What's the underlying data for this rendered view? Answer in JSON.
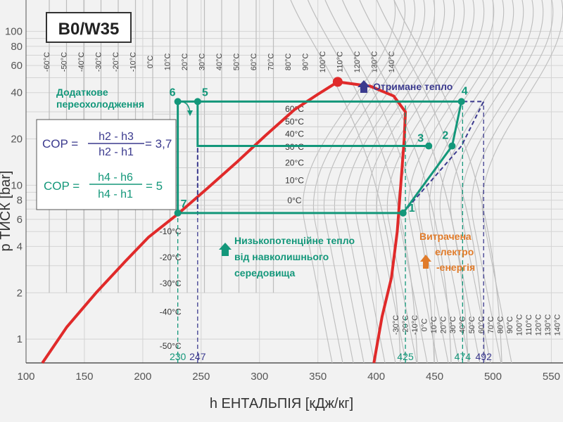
{
  "chart_data": {
    "type": "line",
    "title": "B0/W35",
    "xlabel": "h ЕНТАЛЬПІЯ [кДж/кг]",
    "ylabel": "p ТИСК [bar]",
    "xlim": [
      100,
      560
    ],
    "ylim": [
      0.7,
      160
    ],
    "y_scale": "log",
    "x_ticks": [
      100,
      150,
      200,
      250,
      300,
      350,
      400,
      450,
      500,
      550
    ],
    "y_ticks": [
      1,
      2,
      4,
      6,
      8,
      10,
      20,
      40,
      60,
      80,
      100
    ],
    "grid": true,
    "saturation_dome": {
      "name": "saturation",
      "color": "#e02a2a",
      "critical_point": [
        367,
        47
      ],
      "liquid_line": [
        [
          114,
          0.7
        ],
        [
          135,
          1.2
        ],
        [
          160,
          2.0
        ],
        [
          185,
          3.2
        ],
        [
          205,
          4.6
        ],
        [
          230,
          6.5
        ],
        [
          255,
          9.5
        ],
        [
          280,
          14
        ],
        [
          305,
          21
        ],
        [
          330,
          31
        ],
        [
          350,
          39
        ],
        [
          367,
          47
        ]
      ],
      "vapor_line": [
        [
          367,
          47
        ],
        [
          395,
          44
        ],
        [
          415,
          38
        ],
        [
          425,
          30
        ],
        [
          424,
          20
        ],
        [
          421,
          10
        ],
        [
          418,
          5
        ],
        [
          413,
          2.5
        ],
        [
          405,
          1.4
        ],
        [
          398,
          0.7
        ]
      ]
    },
    "cycle": {
      "color": "#13977a",
      "points": [
        {
          "label": "1",
          "h": 423,
          "p": 6.6
        },
        {
          "label": "2",
          "h": 465,
          "p": 18
        },
        {
          "label": "3",
          "h": 445,
          "p": 18
        },
        {
          "label": "4",
          "h": 473,
          "p": 35
        },
        {
          "label": "5",
          "h": 247,
          "p": 35
        },
        {
          "label": "6",
          "h": 230,
          "p": 35
        },
        {
          "label": "7",
          "h": 230,
          "p": 6.6
        }
      ],
      "path": [
        [
          423,
          6.6
        ],
        [
          465,
          18
        ],
        [
          473,
          35
        ],
        [
          247,
          35
        ],
        [
          230,
          35
        ],
        [
          230,
          6.6
        ],
        [
          423,
          6.6
        ]
      ],
      "intermediate_path": [
        [
          445,
          18
        ],
        [
          247,
          18
        ],
        [
          247,
          35
        ]
      ]
    },
    "ideal_cycle": {
      "color": "#3b3a8e",
      "path": [
        [
          423,
          6.6
        ],
        [
          473,
          18
        ],
        [
          492,
          35
        ],
        [
          247,
          35
        ],
        [
          247,
          6.6
        ],
        [
          423,
          6.6
        ]
      ]
    },
    "h_markers": [
      {
        "h": 230,
        "label": "230",
        "color": "#13977a"
      },
      {
        "h": 247,
        "label": "247",
        "color": "#3b3a8e"
      },
      {
        "h": 425,
        "label": "425",
        "color": "#13977a"
      },
      {
        "h": 474,
        "label": "474",
        "color": "#13977a"
      },
      {
        "h": 492,
        "label": "492",
        "color": "#3b3a8e"
      }
    ],
    "isotherm_labels_top": [
      "-60°C",
      "-50°C",
      "-40°C",
      "-30°C",
      "-20°C",
      "-10°C",
      "0°C",
      "10°C",
      "20°C",
      "30°C",
      "40°C",
      "50°C",
      "60°C",
      "70°C",
      "80°C",
      "90°C",
      "100°C",
      "110°C",
      "120°C",
      "130°C",
      "140°C"
    ],
    "isotherm_labels_dome": [
      {
        "label": "60°C",
        "p": 29
      },
      {
        "label": "50°C",
        "p": 24
      },
      {
        "label": "40°C",
        "p": 20
      },
      {
        "label": "30°C",
        "p": 16.5
      },
      {
        "label": "20°C",
        "p": 13
      },
      {
        "label": "10°C",
        "p": 10
      },
      {
        "label": "0°C",
        "p": 7.4
      }
    ],
    "isotherm_labels_left": [
      {
        "label": "-10°C",
        "p": 5
      },
      {
        "label": "-20°C",
        "p": 3.4
      },
      {
        "label": "-30°C",
        "p": 2.3
      },
      {
        "label": "-40°C",
        "p": 1.5
      },
      {
        "label": "-50°C",
        "p": 0.9
      }
    ],
    "isotherm_labels_bottom": [
      "-30°C",
      "-20°C",
      "-10°C",
      "0°C",
      "10°C",
      "20°C",
      "30°C",
      "40°C",
      "50°C",
      "60°C",
      "70°C",
      "80°C",
      "90°C",
      "100°C",
      "110°C",
      "120°C",
      "130°C",
      "140°C"
    ]
  },
  "annotations": {
    "cop_label": "COP =",
    "cop1_num": "h2 - h3",
    "cop1_den": "h2 - h1",
    "cop1_val": "= 3,7",
    "cop2_num": "h4 - h6",
    "cop2_den": "h4 - h1",
    "cop2_val": "= 5",
    "subcooling_line1": "Додаткове",
    "subcooling_line2": "переохолодження",
    "heat_out": "Отримане тепло",
    "low_heat_line1": "Низькопотенційне тепло",
    "low_heat_line2": "від навколишнього",
    "low_heat_line3": "середовища",
    "electric_line1": "Витрачена",
    "electric_line2": "електро",
    "electric_line3": "-енергія"
  },
  "colors": {
    "teal": "#13977a",
    "navy": "#3b3a8e",
    "red": "#e02a2a",
    "orange": "#e07b2a",
    "grid": "#d4d4d4",
    "isotherm": "#bdbdbd"
  }
}
